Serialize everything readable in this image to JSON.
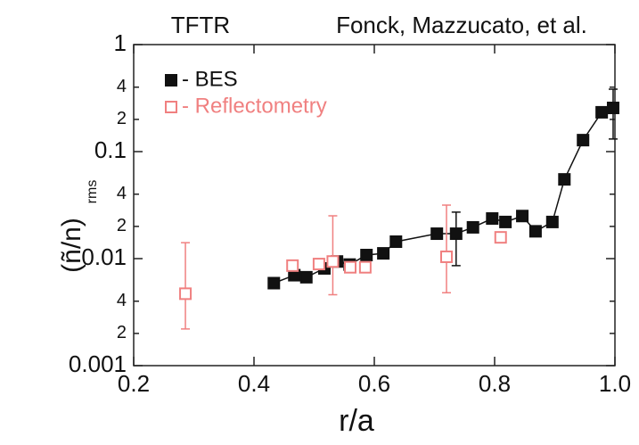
{
  "chart_data": {
    "type": "scatter",
    "title_left": "TFTR",
    "title_right": "Fonck, Mazzucato, et al.",
    "xlabel": "r/a",
    "ylabel": "(ñ/n)",
    "ylabel_sub": "rms",
    "yscale": "log",
    "xlim": [
      0.2,
      1.0
    ],
    "ylim": [
      0.001,
      1
    ],
    "xticks": [
      0.2,
      0.4,
      0.6,
      0.8,
      {
        "value": 1,
        "label": "1.0"
      }
    ],
    "yticks": [
      {
        "value": 0.001,
        "label": "0.001"
      },
      {
        "value": 0.002,
        "label": "2"
      },
      {
        "value": 0.004,
        "label": "4"
      },
      {
        "value": 0.01,
        "label": "0.01"
      },
      {
        "value": 0.02,
        "label": "2"
      },
      {
        "value": 0.04,
        "label": "4"
      },
      {
        "value": 0.1,
        "label": "0.1"
      },
      {
        "value": 0.2,
        "label": "2"
      },
      {
        "value": 0.4,
        "label": "4"
      },
      1
    ],
    "legend": "upper left",
    "series": [
      {
        "name": "- BES",
        "color": "#111111",
        "marker": "filled",
        "line": true,
        "x": [
          0.433,
          0.467,
          0.487,
          0.517,
          0.538,
          0.559,
          0.587,
          0.615,
          0.636,
          0.704,
          0.736,
          0.764,
          0.796,
          0.818,
          0.846,
          0.868,
          0.896,
          0.916,
          0.947,
          0.978,
          0.997
        ],
        "values": [
          0.0059,
          0.007,
          0.0067,
          0.0081,
          0.0094,
          0.0088,
          0.0108,
          0.0112,
          0.0144,
          0.0171,
          0.0171,
          0.0196,
          0.0237,
          0.022,
          0.025,
          0.018,
          0.022,
          0.055,
          0.128,
          0.233,
          0.256
        ],
        "errors": [
          null,
          null,
          null,
          null,
          null,
          null,
          null,
          null,
          null,
          null,
          [
            0.0086,
            0.0272
          ],
          null,
          null,
          null,
          null,
          null,
          null,
          null,
          null,
          null,
          [
            0.131,
            0.383
          ]
        ]
      },
      {
        "name": "- Reflectometry",
        "color": "#f08080",
        "marker": "open",
        "line": false,
        "x": [
          0.286,
          0.464,
          0.508,
          0.531,
          0.56,
          0.585,
          0.72,
          0.81
        ],
        "values": [
          0.0047,
          0.0086,
          0.0089,
          0.0094,
          0.0083,
          0.0083,
          0.0104,
          0.0158
        ],
        "errors": [
          [
            0.0022,
            0.0141
          ],
          null,
          null,
          [
            0.0046,
            0.0251
          ],
          null,
          null,
          [
            0.0048,
            0.0316
          ],
          null
        ]
      }
    ]
  }
}
